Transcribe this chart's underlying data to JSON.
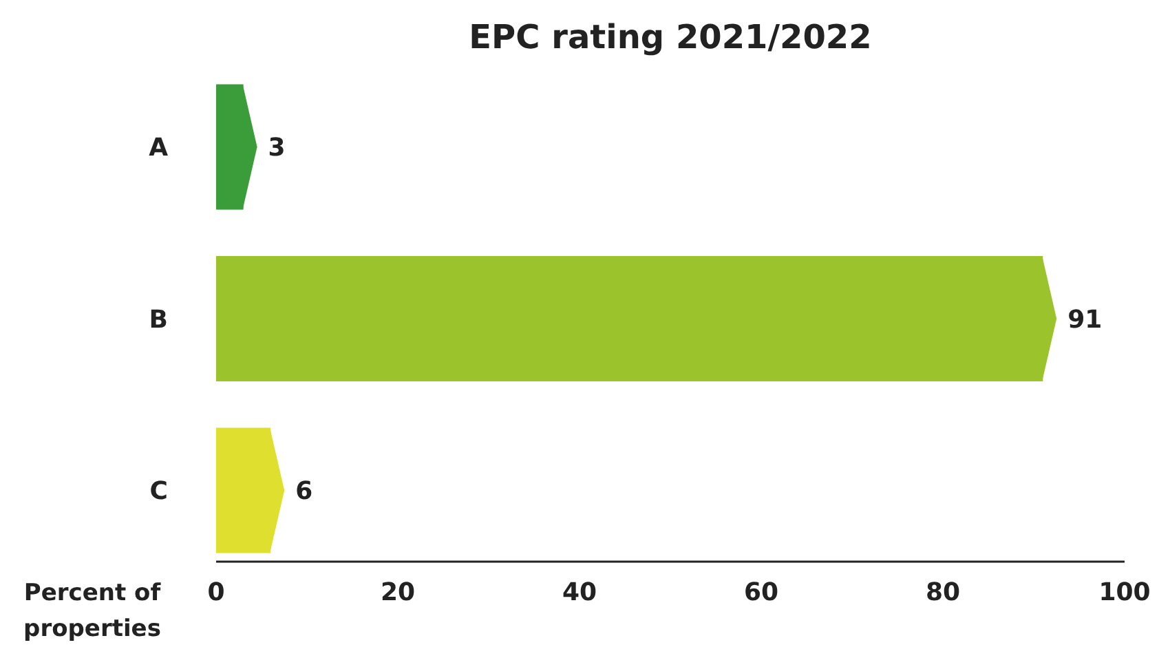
{
  "chart_data": {
    "type": "bar",
    "orientation": "horizontal",
    "title": "EPC rating 2021/2022",
    "xlabel": "Percent of properties",
    "categories": [
      "A",
      "B",
      "C"
    ],
    "values": [
      3,
      91,
      6
    ],
    "colors": [
      "#3a9d3a",
      "#9bc32c",
      "#dfdf2f"
    ],
    "xlim": [
      0,
      100
    ],
    "xticks": [
      0,
      20,
      40,
      60,
      80,
      100
    ],
    "data_labels": true,
    "grid": false
  }
}
